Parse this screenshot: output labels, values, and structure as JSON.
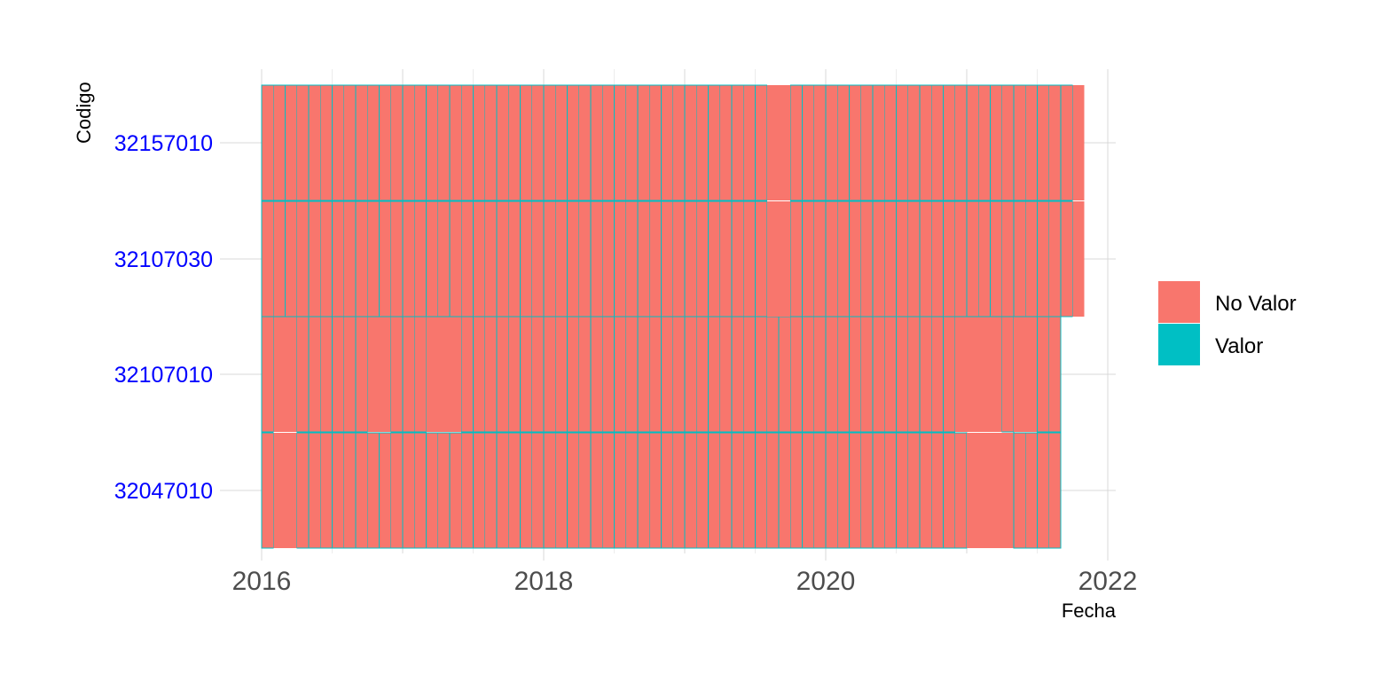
{
  "chart_data": {
    "type": "heatmap",
    "xlabel": "Fecha",
    "ylabel": "Codigo",
    "x_ticks": [
      "2016",
      "2018",
      "2020",
      "2022"
    ],
    "x_range": [
      "2016-01",
      "2022-01"
    ],
    "y_categories": [
      "32047010",
      "32107010",
      "32107030",
      "32157010"
    ],
    "grid": true,
    "legend_position": "right",
    "legend": [
      {
        "label": "No Valor",
        "color": "#F8766D"
      },
      {
        "label": "Valor",
        "color": "#00BFC4"
      }
    ],
    "series": [
      {
        "codigo": "32047010",
        "start": "2016-01",
        "end": "2021-08",
        "no_valor_months": [
          "2016-02",
          "2016-03",
          "2021-01",
          "2021-02",
          "2021-03",
          "2021-04"
        ]
      },
      {
        "codigo": "32107010",
        "start": "2016-01",
        "end": "2021-08",
        "no_valor_months": [
          "2016-02",
          "2016-03",
          "2016-10",
          "2016-11",
          "2017-03",
          "2017-04",
          "2017-05",
          "2020-12",
          "2021-01",
          "2021-02",
          "2021-03",
          "2021-05",
          "2021-06"
        ]
      },
      {
        "codigo": "32107030",
        "start": "2016-01",
        "end": "2021-10",
        "no_valor_months": [
          "2019-08",
          "2019-09",
          "2021-10"
        ]
      },
      {
        "codigo": "32157010",
        "start": "2016-01",
        "end": "2021-10",
        "no_valor_months": [
          "2019-08",
          "2019-09",
          "2021-10"
        ]
      }
    ]
  }
}
